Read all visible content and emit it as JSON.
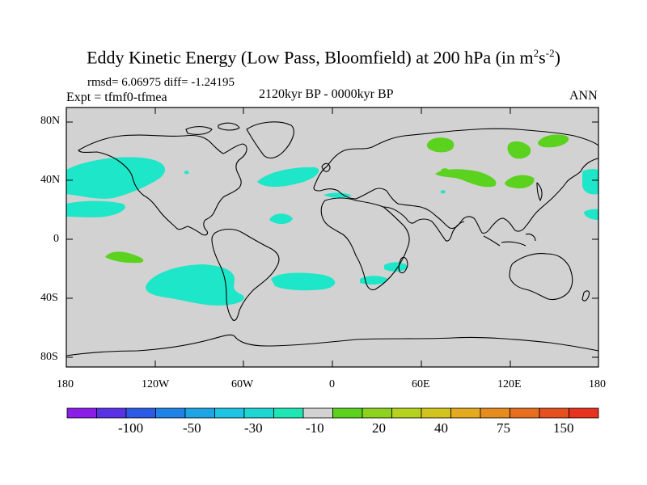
{
  "title": {
    "main": "Eddy Kinetic Energy (Low Pass, Bloomfield) at 200 hPa (in m",
    "sup1": "2",
    "mid": "s",
    "sup2": "-2",
    "end": ")"
  },
  "stats": "rmsd= 6.06975 diff= -1.24195",
  "experiment": "Expt = tfmf0-tfmea",
  "period": "2120kyr BP - 0000kyr BP",
  "season": "ANN",
  "axes": {
    "lat_labels": [
      "80N",
      "40N",
      "0",
      "40S",
      "80S"
    ],
    "lon_labels": [
      "180",
      "120W",
      "60W",
      "0",
      "60E",
      "120E",
      "180"
    ]
  },
  "colorbar": {
    "colors": [
      "#8a1ee6",
      "#5a32e6",
      "#2a5ae6",
      "#1e82e6",
      "#1ea5e6",
      "#1ec3e6",
      "#1ed7d2",
      "#1ee6b4",
      "#d2d2d2",
      "#5ad21e",
      "#8cd21e",
      "#b4d21e",
      "#d2c31e",
      "#e6aa1e",
      "#e68c1e",
      "#e66e1e",
      "#e6501e",
      "#e6321e"
    ],
    "labels": [
      "-100",
      "-50",
      "-30",
      "-10",
      "20",
      "40",
      "75",
      "150"
    ]
  },
  "colors": {
    "land_background": "#d2d2d2",
    "negative_anomaly": "#1ee6c8",
    "positive_anomaly": "#5ad21e"
  }
}
